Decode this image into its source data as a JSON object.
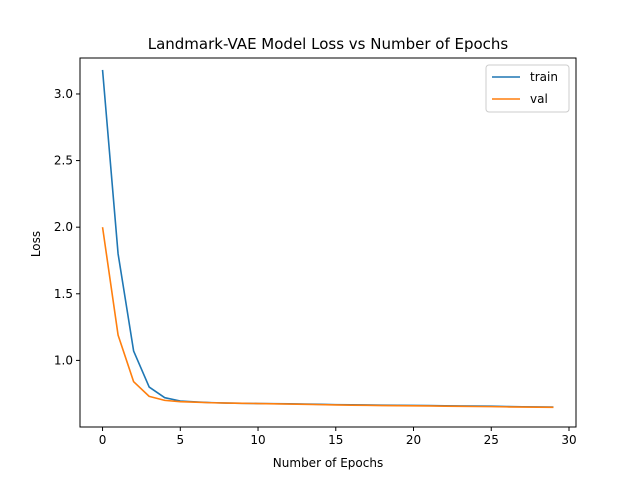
{
  "chart_data": {
    "type": "line",
    "title": "Landmark-VAE Model Loss vs Number of Epochs",
    "xlabel": "Number of Epochs",
    "ylabel": "Loss",
    "xlim": [
      -1.45,
      30.45
    ],
    "ylim": [
      0.5,
      3.27
    ],
    "xticks": [
      0,
      5,
      10,
      15,
      20,
      25,
      30
    ],
    "yticks": [
      1.0,
      1.5,
      2.0,
      2.5,
      3.0
    ],
    "ytick_labels": [
      "1.0",
      "1.5",
      "2.0",
      "2.5",
      "3.0"
    ],
    "grid": false,
    "legend": "top-right",
    "x": [
      0,
      1,
      2,
      3,
      4,
      5,
      6,
      7,
      8,
      9,
      10,
      11,
      12,
      13,
      14,
      15,
      16,
      17,
      18,
      19,
      20,
      21,
      22,
      23,
      24,
      25,
      26,
      27,
      28,
      29
    ],
    "series": [
      {
        "name": "train",
        "color": "#1f77b4",
        "values": [
          3.18,
          1.8,
          1.07,
          0.8,
          0.72,
          0.695,
          0.688,
          0.683,
          0.68,
          0.678,
          0.676,
          0.675,
          0.674,
          0.672,
          0.67,
          0.668,
          0.667,
          0.666,
          0.664,
          0.663,
          0.662,
          0.661,
          0.659,
          0.658,
          0.657,
          0.656,
          0.654,
          0.652,
          0.651,
          0.65
        ]
      },
      {
        "name": "val",
        "color": "#ff7f0e",
        "values": [
          2.0,
          1.19,
          0.84,
          0.73,
          0.7,
          0.69,
          0.686,
          0.682,
          0.68,
          0.678,
          0.676,
          0.674,
          0.672,
          0.67,
          0.668,
          0.666,
          0.664,
          0.663,
          0.661,
          0.66,
          0.659,
          0.658,
          0.656,
          0.655,
          0.654,
          0.653,
          0.651,
          0.65,
          0.649,
          0.648
        ]
      }
    ]
  }
}
